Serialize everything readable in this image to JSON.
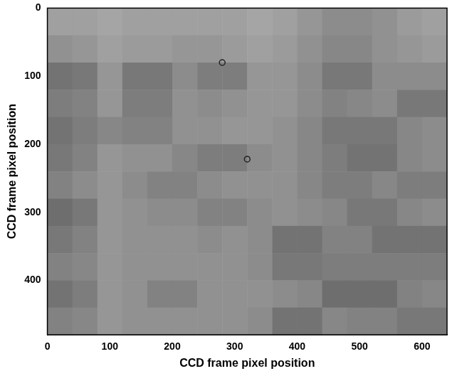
{
  "chart_data": {
    "type": "heatmap",
    "x_label": "CCD frame pixel position",
    "y_label": "CCD frame pixel position",
    "xlim": [
      0,
      640
    ],
    "ylim": [
      0,
      480
    ],
    "xticks": [
      0,
      100,
      200,
      300,
      400,
      500,
      600
    ],
    "yticks": [
      0,
      100,
      200,
      300,
      400
    ],
    "grid": false,
    "x_edges": [
      0,
      40,
      80,
      120,
      160,
      200,
      240,
      280,
      320,
      360,
      400,
      440,
      480,
      520,
      560,
      600,
      640
    ],
    "y_edges": [
      0,
      40,
      80,
      120,
      160,
      200,
      240,
      280,
      320,
      360,
      400,
      440,
      480
    ],
    "color_range": [
      0,
      255
    ],
    "cells": [
      [
        160,
        160,
        165,
        160,
        160,
        160,
        160,
        160,
        165,
        160,
        150,
        140,
        140,
        145,
        155,
        160
      ],
      [
        145,
        150,
        160,
        155,
        155,
        150,
        150,
        155,
        160,
        155,
        145,
        135,
        135,
        145,
        150,
        155
      ],
      [
        115,
        120,
        150,
        120,
        120,
        140,
        125,
        125,
        150,
        150,
        140,
        120,
        120,
        140,
        140,
        140
      ],
      [
        125,
        130,
        150,
        125,
        125,
        145,
        140,
        145,
        150,
        150,
        140,
        130,
        135,
        140,
        120,
        120
      ],
      [
        115,
        125,
        135,
        130,
        130,
        145,
        145,
        150,
        150,
        145,
        135,
        120,
        120,
        120,
        135,
        140
      ],
      [
        120,
        130,
        150,
        145,
        145,
        135,
        125,
        125,
        140,
        145,
        135,
        125,
        115,
        115,
        135,
        140
      ],
      [
        130,
        140,
        150,
        140,
        130,
        130,
        140,
        145,
        145,
        145,
        135,
        125,
        125,
        135,
        125,
        125
      ],
      [
        110,
        120,
        150,
        145,
        140,
        140,
        130,
        130,
        140,
        145,
        140,
        135,
        120,
        120,
        135,
        140
      ],
      [
        120,
        130,
        150,
        145,
        145,
        145,
        140,
        145,
        140,
        115,
        115,
        130,
        130,
        115,
        115,
        115
      ],
      [
        130,
        135,
        150,
        145,
        145,
        145,
        145,
        145,
        140,
        120,
        120,
        125,
        125,
        125,
        125,
        125
      ],
      [
        115,
        125,
        150,
        145,
        130,
        130,
        145,
        145,
        145,
        140,
        135,
        110,
        110,
        110,
        130,
        135
      ],
      [
        130,
        135,
        150,
        145,
        145,
        145,
        145,
        145,
        140,
        115,
        115,
        135,
        130,
        130,
        120,
        120
      ]
    ],
    "points": {
      "x": [
        280,
        320
      ],
      "y": [
        80,
        222
      ],
      "marker": "circle"
    }
  }
}
